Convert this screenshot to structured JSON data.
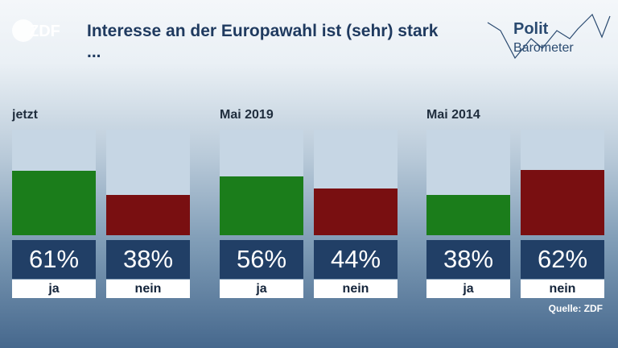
{
  "brand": {
    "logo_text": "ZDF",
    "politbarometer_line1": "Polit",
    "politbarometer_line2": "Barometer"
  },
  "title": "Interesse an der Europawahl ist (sehr) stark ...",
  "source": "Quelle: ZDF",
  "colors": {
    "ja": "#1b7d1b",
    "nein": "#790f11",
    "label_box": "#213f66",
    "bar_background": "#c6d6e4"
  },
  "chart_data": {
    "type": "bar",
    "unit": "%",
    "ylim": [
      0,
      100
    ],
    "categories": [
      "ja",
      "nein"
    ],
    "groups": [
      {
        "label": "jetzt",
        "values": [
          61,
          38
        ],
        "value_labels": [
          "61%",
          "38%"
        ]
      },
      {
        "label": "Mai 2019",
        "values": [
          56,
          44
        ],
        "value_labels": [
          "56%",
          "44%"
        ]
      },
      {
        "label": "Mai 2014",
        "values": [
          38,
          62
        ],
        "value_labels": [
          "38%",
          "62%"
        ]
      }
    ]
  }
}
